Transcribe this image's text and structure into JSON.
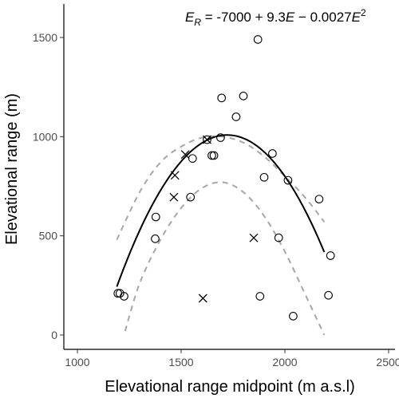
{
  "chart_data": {
    "type": "scatter",
    "title": "",
    "xlabel": "Elevational range midpoint (m a.s.l)",
    "ylabel": "Elevational range (m)",
    "xlim": [
      1000,
      2500
    ],
    "ylim": [
      0,
      1500
    ],
    "xticks": [
      1000,
      1500,
      2000,
      2500
    ],
    "yticks": [
      0,
      500,
      1000,
      1500
    ],
    "grid": false,
    "equation": {
      "lhs": "E",
      "lhs_subscript": "R",
      "rhs_prefix": " = -7000 + 9.3",
      "rhs_var1": "E",
      "rhs_mid": " − 0.0027",
      "rhs_var2": "E",
      "rhs_exp": "2"
    },
    "series": [
      {
        "marker": "circle",
        "points": [
          [
            1195,
            210
          ],
          [
            1205,
            210
          ],
          [
            1225,
            195
          ],
          [
            1375,
            485
          ],
          [
            1378,
            595
          ],
          [
            1545,
            695
          ],
          [
            1555,
            890
          ],
          [
            1625,
            985
          ],
          [
            1648,
            905
          ],
          [
            1658,
            905
          ],
          [
            1690,
            995
          ],
          [
            1695,
            1195
          ],
          [
            1800,
            1205
          ],
          [
            1765,
            1100
          ],
          [
            1870,
            1490
          ],
          [
            1900,
            795
          ],
          [
            1940,
            915
          ],
          [
            1970,
            490
          ],
          [
            2015,
            780
          ],
          [
            1880,
            195
          ],
          [
            2040,
            95
          ],
          [
            2165,
            685
          ],
          [
            2210,
            200
          ],
          [
            2220,
            400
          ]
        ]
      },
      {
        "marker": "cross",
        "points": [
          [
            1470,
            805
          ],
          [
            1465,
            695
          ],
          [
            1520,
            910
          ],
          [
            1605,
            185
          ],
          [
            1625,
            985
          ],
          [
            1850,
            490
          ]
        ]
      }
    ],
    "fit": {
      "a": -7000,
      "b": 9.3,
      "c": -0.0027,
      "x_range": [
        1190,
        2190
      ],
      "line_color": "#000000"
    },
    "confidence_band": {
      "x_range": [
        1190,
        2190
      ],
      "upper": [
        [
          1190,
          480
        ],
        [
          1300,
          720
        ],
        [
          1400,
          870
        ],
        [
          1500,
          950
        ],
        [
          1600,
          995
        ],
        [
          1700,
          1000
        ],
        [
          1800,
          970
        ],
        [
          1900,
          900
        ],
        [
          2000,
          800
        ],
        [
          2100,
          690
        ],
        [
          2190,
          570
        ]
      ],
      "lower": [
        [
          1230,
          20
        ],
        [
          1300,
          260
        ],
        [
          1400,
          480
        ],
        [
          1500,
          640
        ],
        [
          1600,
          740
        ],
        [
          1700,
          770
        ],
        [
          1800,
          720
        ],
        [
          1900,
          600
        ],
        [
          2000,
          420
        ],
        [
          2100,
          200
        ],
        [
          2190,
          0
        ]
      ],
      "line_color": "#a6a6a6"
    }
  }
}
